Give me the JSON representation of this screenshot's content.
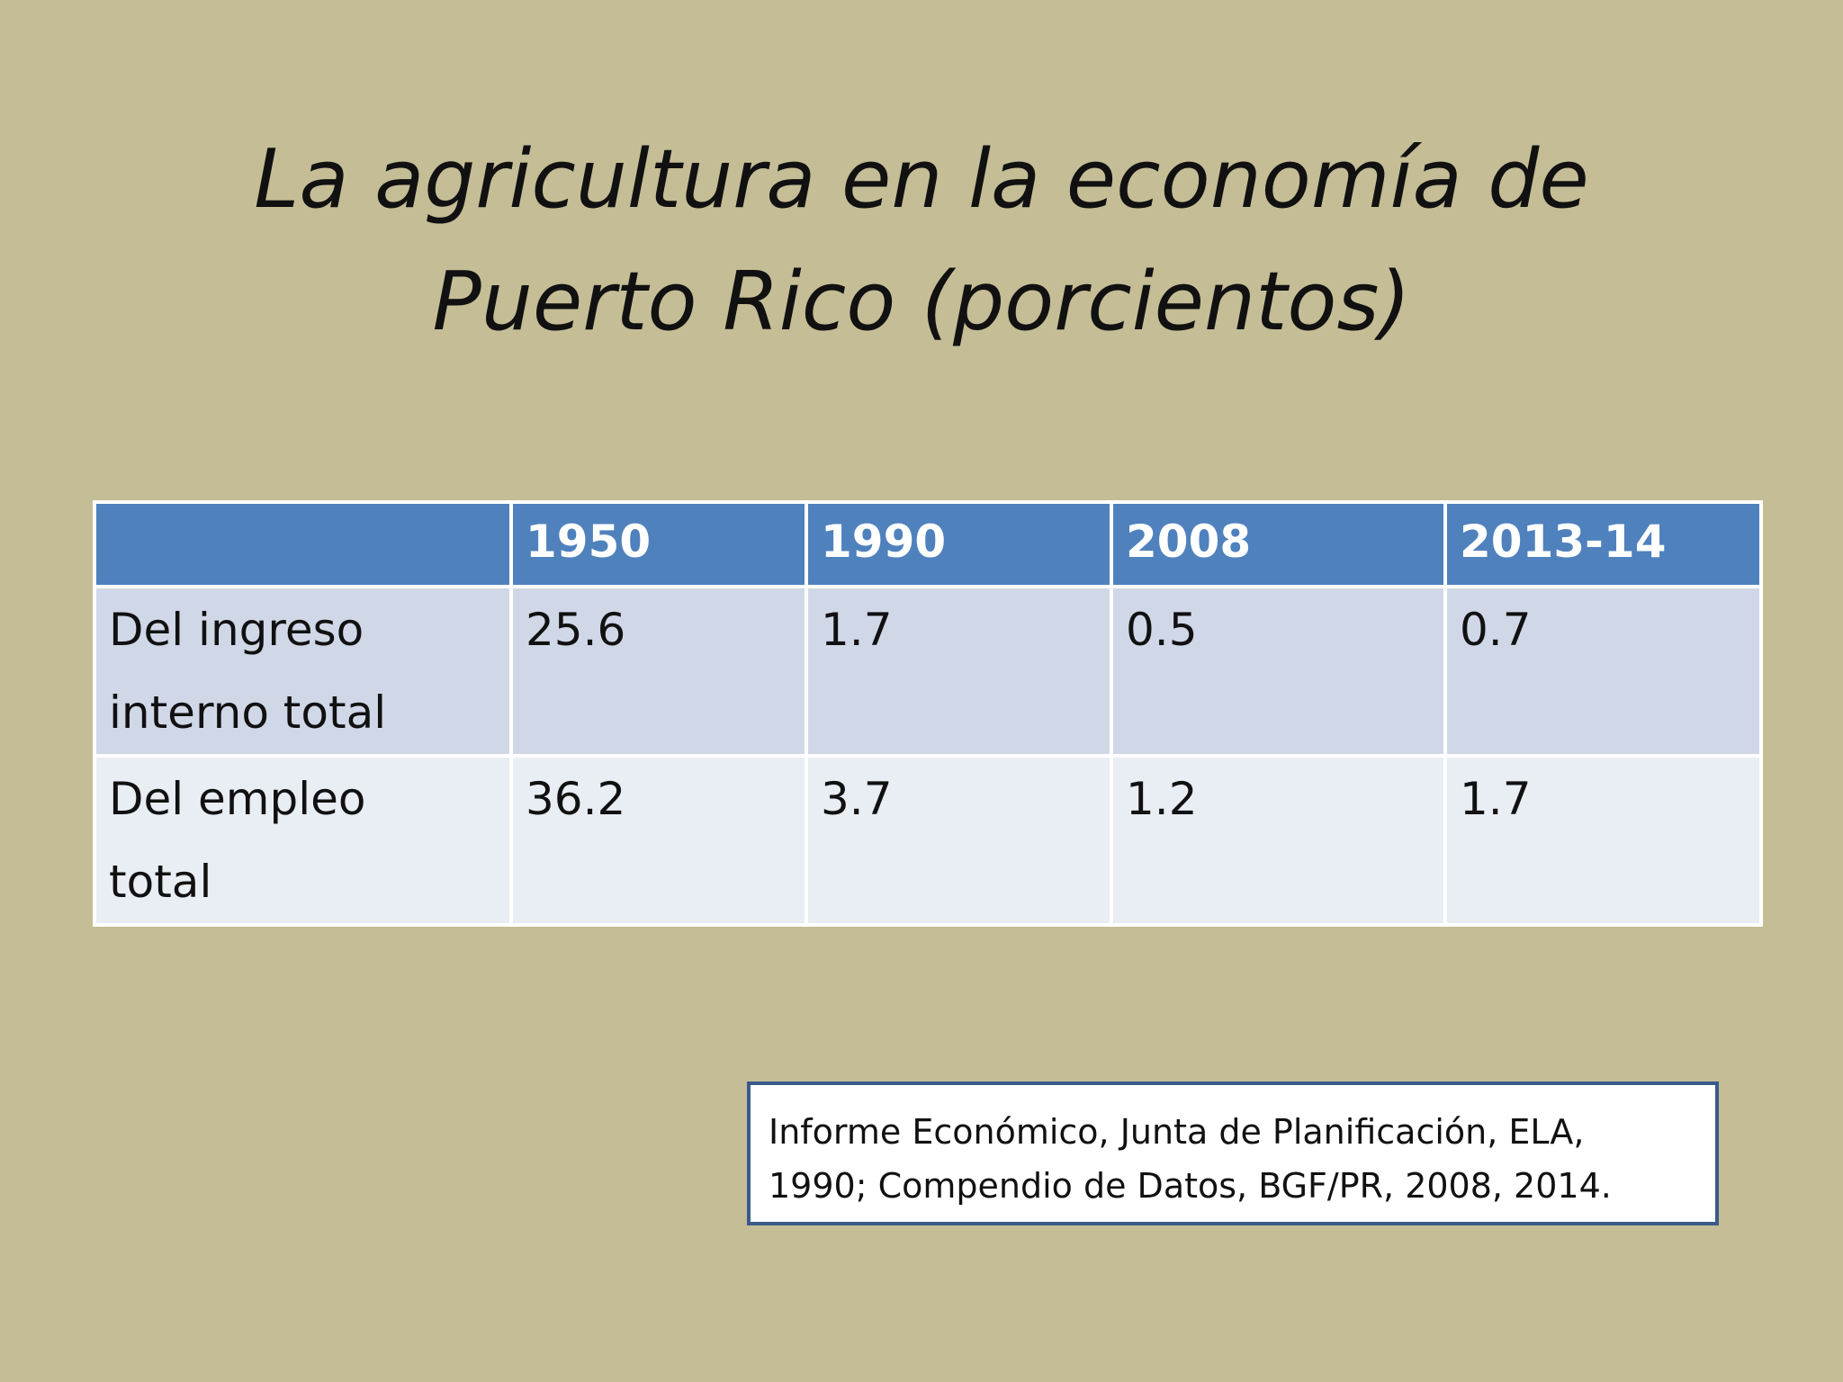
{
  "title": {
    "line1": "La agricultura en la economía de",
    "line2": "Puerto Rico (porcientos)"
  },
  "table": {
    "headers": [
      "",
      "1950",
      "1990",
      "2008",
      "2013-14"
    ],
    "rows": [
      {
        "label_line1": "Del ingreso",
        "label_line2": "interno total",
        "values": [
          "25.6",
          "1.7",
          "0.5",
          "0.7"
        ]
      },
      {
        "label_line1": "Del empleo",
        "label_line2": "total",
        "values": [
          "36.2",
          "3.7",
          "1.2",
          "1.7"
        ]
      }
    ]
  },
  "source": {
    "line1": "Informe Económico, Junta de Planificación, ELA,",
    "line2": "1990; Compendio de Datos, BGF/PR, 2008, 2014."
  },
  "colors": {
    "background": "#c4bd96",
    "header_fill": "#4f81bd",
    "row_odd_fill": "#d0d8e8",
    "row_even_fill": "#e9edf4",
    "source_border": "#3a5a8a"
  }
}
